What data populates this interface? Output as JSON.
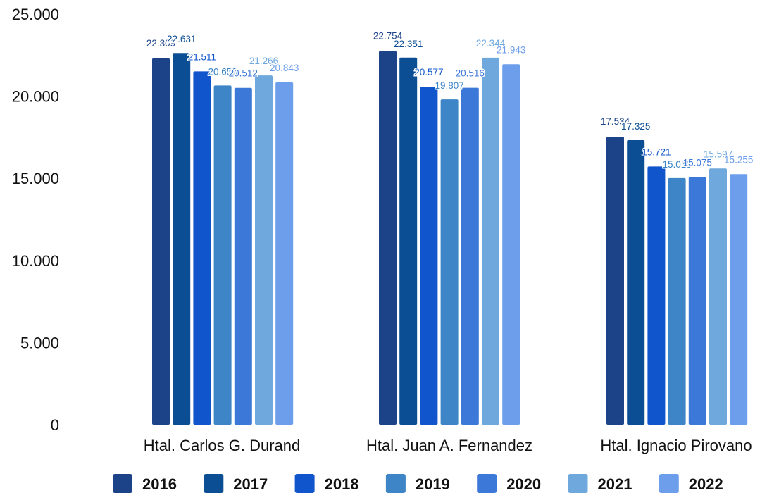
{
  "chart_data": {
    "type": "bar",
    "title": "",
    "xlabel": "",
    "ylabel": "",
    "ylim": [
      0,
      25000
    ],
    "y_ticks": [
      {
        "value": 0,
        "label": "0"
      },
      {
        "value": 5000,
        "label": "5.000"
      },
      {
        "value": 10000,
        "label": "10.000"
      },
      {
        "value": 15000,
        "label": "15.000"
      },
      {
        "value": 20000,
        "label": "20.000"
      },
      {
        "value": 25000,
        "label": "25.000"
      }
    ],
    "grid": false,
    "legend_position": "bottom",
    "categories": [
      "Htal. Carlos G. Durand",
      "Htal. Juan A. Fernandez",
      "Htal. Ignacio Pirovano"
    ],
    "series": [
      {
        "name": "2016",
        "color": "#1c4388",
        "values": [
          22309,
          22754,
          17534
        ],
        "labels": [
          "22.309",
          "22.754",
          "17.534"
        ]
      },
      {
        "name": "2017",
        "color": "#0b4e94",
        "values": [
          22631,
          22351,
          17325
        ],
        "labels": [
          "22.631",
          "22.351",
          "17.325"
        ]
      },
      {
        "name": "2018",
        "color": "#1155cc",
        "values": [
          21511,
          20577,
          15721
        ],
        "labels": [
          "21.511",
          "20.577",
          "15.721"
        ]
      },
      {
        "name": "2019",
        "color": "#3d85c6",
        "values": [
          20653,
          19807,
          15015
        ],
        "labels": [
          "20.653",
          "19.807",
          "15.015"
        ]
      },
      {
        "name": "2020",
        "color": "#3c78d8",
        "values": [
          20512,
          20516,
          15075
        ],
        "labels": [
          "20.512",
          "20.516",
          "15.075"
        ]
      },
      {
        "name": "2021",
        "color": "#6fa8dc",
        "values": [
          21266,
          22344,
          15597
        ],
        "labels": [
          "21.266",
          "22.344",
          "15.597"
        ]
      },
      {
        "name": "2022",
        "color": "#6d9eeb",
        "values": [
          20843,
          21943,
          15255
        ],
        "labels": [
          "20.843",
          "21.943",
          "15.255"
        ]
      }
    ]
  }
}
